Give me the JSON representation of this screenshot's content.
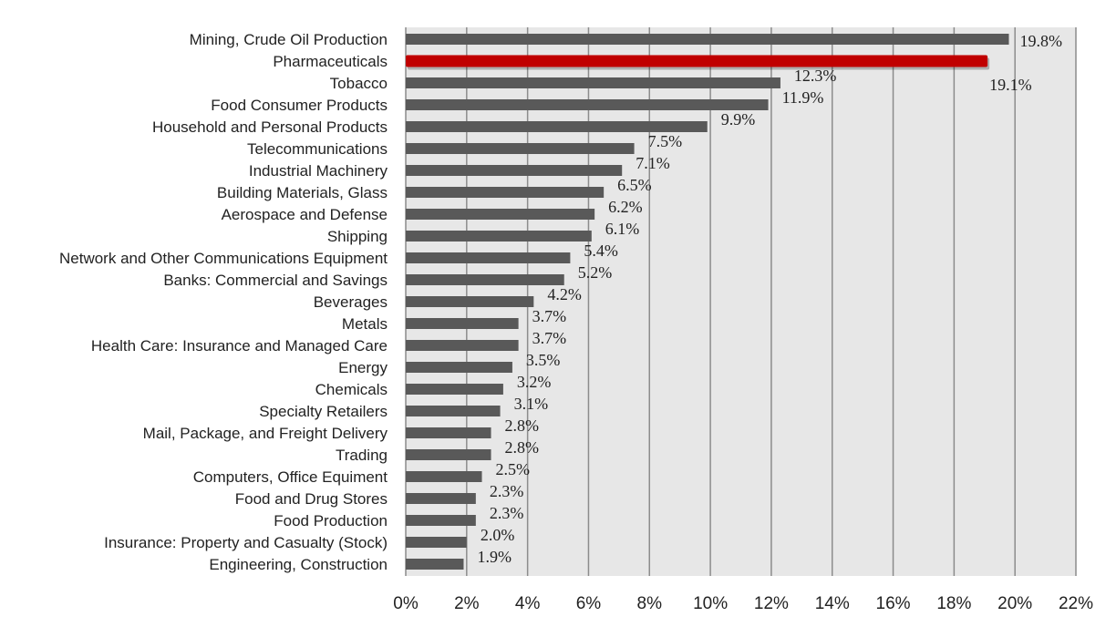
{
  "chart_data": {
    "type": "bar",
    "orientation": "horizontal",
    "title": "",
    "xlabel": "",
    "ylabel": "",
    "xlim": [
      0,
      22
    ],
    "x_tick_step": 2,
    "x_tick_labels": [
      "0%",
      "2%",
      "4%",
      "6%",
      "8%",
      "10%",
      "12%",
      "14%",
      "16%",
      "18%",
      "20%",
      "22%"
    ],
    "grid": "vertical",
    "highlight_category": "Pharmaceuticals",
    "colors": {
      "bar": "#595959",
      "highlight": "#c00000",
      "plot_background": "#e7e7e7",
      "grid": "#8c8c8c"
    },
    "categories": [
      "Mining, Crude Oil Production",
      "Pharmaceuticals",
      "Tobacco",
      "Food Consumer Products",
      "Household and Personal Products",
      "Telecommunications",
      "Industrial Machinery",
      "Building Materials, Glass",
      "Aerospace and Defense",
      "Shipping",
      "Network and Other Communications Equipment",
      "Banks: Commercial and Savings",
      "Beverages",
      "Metals",
      "Health Care: Insurance and Managed Care",
      "Energy",
      "Chemicals",
      "Specialty Retailers",
      "Mail, Package, and Freight Delivery",
      "Trading",
      "Computers, Office Equiment",
      "Food and Drug Stores",
      "Food Production",
      "Insurance: Property and Casualty (Stock)",
      "Engineering, Construction"
    ],
    "values": [
      19.8,
      19.1,
      12.3,
      11.9,
      9.9,
      7.5,
      7.1,
      6.5,
      6.2,
      6.1,
      5.4,
      5.2,
      4.2,
      3.7,
      3.7,
      3.5,
      3.2,
      3.1,
      2.8,
      2.8,
      2.5,
      2.3,
      2.3,
      2.0,
      1.9
    ],
    "value_labels": [
      "19.8%",
      "19.1%",
      "12.3%",
      "11.9%",
      "9.9%",
      "7.5%",
      "7.1%",
      "6.5%",
      "6.2%",
      "6.1%",
      "5.4%",
      "5.2%",
      "4.2%",
      "3.7%",
      "3.7%",
      "3.5%",
      "3.2%",
      "3.1%",
      "2.8%",
      "2.8%",
      "2.5%",
      "2.3%",
      "2.3%",
      "2.0%",
      "1.9%"
    ]
  }
}
